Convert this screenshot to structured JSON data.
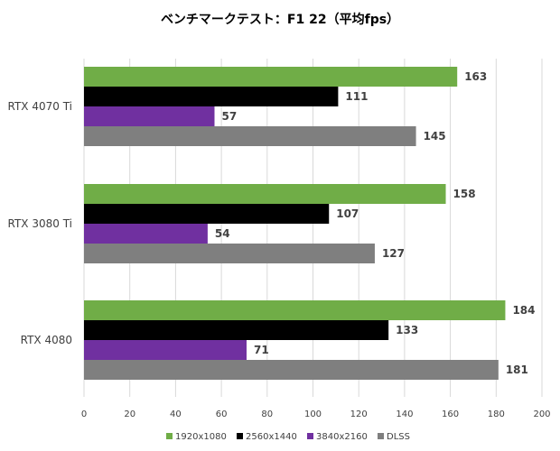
{
  "chart_data": {
    "type": "bar",
    "orientation": "horizontal",
    "title": "ベンチマークテスト：F1 22（平均fps）",
    "categories": [
      "RTX 4070 Ti",
      "RTX 3080 Ti",
      "RTX 4080"
    ],
    "series": [
      {
        "name": "1920x1080",
        "color": "#70ad47",
        "values": [
          163,
          158,
          184
        ]
      },
      {
        "name": "2560x1440",
        "color": "#000000",
        "values": [
          111,
          107,
          133
        ]
      },
      {
        "name": "3840x2160",
        "color": "#7030a0",
        "values": [
          57,
          54,
          71
        ]
      },
      {
        "name": "DLSS",
        "color": "#7f7f7f",
        "values": [
          145,
          127,
          181
        ]
      }
    ],
    "xlim": [
      0,
      200
    ],
    "xticks": [
      "0",
      "20",
      "40",
      "60",
      "80",
      "100",
      "120",
      "140",
      "160",
      "180",
      "200"
    ],
    "grid": true,
    "legend": "bottom"
  }
}
